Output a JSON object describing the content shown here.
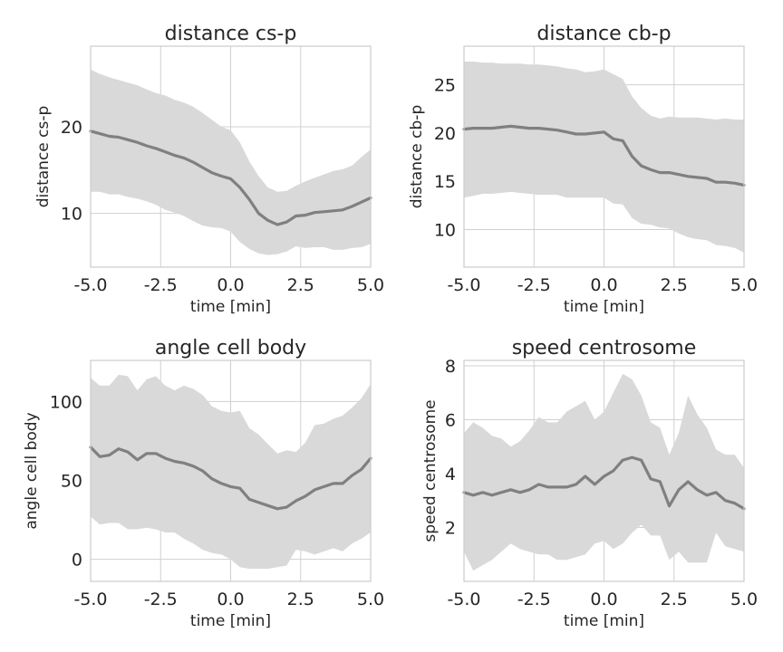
{
  "chart_data": [
    {
      "type": "line",
      "title": "distance cs-p",
      "xlabel": "time [min]",
      "ylabel": "distance cs-p",
      "xlim": [
        -5.0,
        5.0
      ],
      "ylim": [
        3.8,
        29.3
      ],
      "xticks": [
        -5.0,
        -2.5,
        0.0,
        2.5,
        5.0
      ],
      "xtick_labels": [
        "-5.0",
        "-2.5",
        "0.0",
        "2.5",
        "5.0"
      ],
      "yticks": [
        10,
        20
      ],
      "ytick_labels": [
        "10",
        "20"
      ],
      "grid": true,
      "x": [
        -5.0,
        -4.67,
        -4.33,
        -4.0,
        -3.67,
        -3.33,
        -3.0,
        -2.67,
        -2.33,
        -2.0,
        -1.67,
        -1.33,
        -1.0,
        -0.67,
        -0.33,
        0.0,
        0.33,
        0.67,
        1.0,
        1.33,
        1.67,
        2.0,
        2.33,
        2.67,
        3.0,
        3.33,
        3.67,
        4.0,
        4.33,
        4.67,
        5.0
      ],
      "series": [
        {
          "mean": [
            19.5,
            19.2,
            18.9,
            18.8,
            18.5,
            18.2,
            17.8,
            17.5,
            17.1,
            16.7,
            16.4,
            15.9,
            15.3,
            14.7,
            14.3,
            14.0,
            13.0,
            11.6,
            10.0,
            9.2,
            8.7,
            9.0,
            9.7,
            9.8,
            10.1,
            10.2,
            10.3,
            10.4,
            10.8,
            11.3,
            11.8
          ],
          "upper": [
            26.6,
            26.1,
            25.7,
            25.4,
            25.1,
            24.8,
            24.3,
            23.9,
            23.6,
            23.1,
            22.8,
            22.3,
            21.6,
            20.8,
            20.0,
            19.6,
            18.2,
            16.0,
            14.3,
            13.0,
            12.5,
            12.6,
            13.2,
            13.7,
            14.1,
            14.5,
            14.9,
            15.1,
            15.5,
            16.5,
            17.4
          ],
          "lower": [
            12.5,
            12.5,
            12.2,
            12.2,
            11.9,
            11.7,
            11.4,
            11.0,
            10.4,
            10.1,
            9.7,
            9.1,
            8.6,
            8.4,
            8.3,
            7.9,
            6.7,
            5.9,
            5.4,
            5.2,
            5.3,
            5.6,
            6.2,
            6.0,
            6.1,
            6.1,
            5.8,
            5.8,
            6.0,
            6.1,
            6.5
          ]
        }
      ]
    },
    {
      "type": "line",
      "title": "distance cb-p",
      "xlabel": "time [min]",
      "ylabel": "distance cb-p",
      "xlim": [
        -5.0,
        5.0
      ],
      "ylim": [
        6.1,
        29.0
      ],
      "xticks": [
        -5.0,
        -2.5,
        0.0,
        2.5,
        5.0
      ],
      "xtick_labels": [
        "-5.0",
        "-2.5",
        "0.0",
        "2.5",
        "5.0"
      ],
      "yticks": [
        10,
        15,
        20,
        25
      ],
      "ytick_labels": [
        "10",
        "15",
        "20",
        "25"
      ],
      "grid": true,
      "x": [
        -5.0,
        -4.67,
        -4.33,
        -4.0,
        -3.67,
        -3.33,
        -3.0,
        -2.67,
        -2.33,
        -2.0,
        -1.67,
        -1.33,
        -1.0,
        -0.67,
        -0.33,
        0.0,
        0.33,
        0.67,
        1.0,
        1.33,
        1.67,
        2.0,
        2.33,
        2.67,
        3.0,
        3.33,
        3.67,
        4.0,
        4.33,
        4.67,
        5.0
      ],
      "series": [
        {
          "mean": [
            20.4,
            20.5,
            20.5,
            20.5,
            20.6,
            20.7,
            20.6,
            20.5,
            20.5,
            20.4,
            20.3,
            20.1,
            19.9,
            19.9,
            20.0,
            20.1,
            19.4,
            19.2,
            17.6,
            16.6,
            16.2,
            15.9,
            15.9,
            15.7,
            15.5,
            15.4,
            15.3,
            14.9,
            14.9,
            14.8,
            14.6
          ],
          "upper": [
            27.4,
            27.4,
            27.3,
            27.3,
            27.2,
            27.2,
            27.2,
            27.1,
            27.1,
            27.0,
            26.9,
            26.7,
            26.6,
            26.3,
            26.4,
            26.6,
            26.1,
            25.6,
            23.8,
            22.6,
            21.8,
            21.5,
            21.7,
            21.6,
            21.6,
            21.6,
            21.5,
            21.4,
            21.5,
            21.4,
            21.4
          ],
          "lower": [
            13.3,
            13.5,
            13.7,
            13.7,
            13.8,
            13.9,
            13.8,
            13.7,
            13.6,
            13.6,
            13.6,
            13.3,
            13.3,
            13.3,
            13.3,
            13.3,
            12.7,
            12.6,
            11.2,
            10.6,
            10.5,
            10.2,
            10.1,
            9.6,
            9.2,
            9.0,
            8.9,
            8.4,
            8.3,
            8.1,
            7.6
          ]
        }
      ]
    },
    {
      "type": "line",
      "title": "angle cell body",
      "xlabel": "time [min]",
      "ylabel": "angle cell body",
      "xlim": [
        -5.0,
        5.0
      ],
      "ylim": [
        -14,
        126
      ],
      "xticks": [
        -5.0,
        -2.5,
        0.0,
        2.5,
        5.0
      ],
      "xtick_labels": [
        "-5.0",
        "-2.5",
        "0.0",
        "2.5",
        "5.0"
      ],
      "yticks": [
        0,
        50,
        100
      ],
      "ytick_labels": [
        "0",
        "50",
        "100"
      ],
      "grid": true,
      "x": [
        -5.0,
        -4.67,
        -4.33,
        -4.0,
        -3.67,
        -3.33,
        -3.0,
        -2.67,
        -2.33,
        -2.0,
        -1.67,
        -1.33,
        -1.0,
        -0.67,
        -0.33,
        0.0,
        0.33,
        0.67,
        1.0,
        1.33,
        1.67,
        2.0,
        2.33,
        2.67,
        3.0,
        3.33,
        3.67,
        4.0,
        4.33,
        4.67,
        5.0
      ],
      "series": [
        {
          "mean": [
            71,
            65,
            66,
            70,
            68,
            63,
            67,
            67,
            64,
            62,
            61,
            59,
            56,
            51,
            48,
            46,
            45,
            38,
            36,
            34,
            32,
            33,
            37,
            40,
            44,
            46,
            48,
            48,
            53,
            57,
            64
          ],
          "upper": [
            115,
            110,
            110,
            117,
            116,
            107,
            114,
            116,
            110,
            107,
            110,
            108,
            104,
            97,
            94,
            93,
            94,
            83,
            79,
            73,
            67,
            69,
            68,
            74,
            85,
            86,
            89,
            91,
            96,
            102,
            111
          ],
          "lower": [
            27,
            22,
            23,
            23,
            19,
            19,
            20,
            19,
            17,
            17,
            13,
            10,
            6,
            4,
            3,
            0,
            -5,
            -6,
            -6,
            -6,
            -5,
            -4,
            6,
            5,
            3,
            5,
            7,
            5,
            10,
            13,
            17
          ]
        }
      ]
    },
    {
      "type": "line",
      "title": "speed centrosome",
      "xlabel": "time [min]",
      "ylabel": "speed centrosome",
      "xlim": [
        -5.0,
        5.0
      ],
      "ylim": [
        0.0,
        8.2
      ],
      "xticks": [
        -5.0,
        -2.5,
        0.0,
        2.5,
        5.0
      ],
      "xtick_labels": [
        "-5.0",
        "-2.5",
        "0.0",
        "2.5",
        "5.0"
      ],
      "yticks": [
        2,
        4,
        6,
        8
      ],
      "ytick_labels": [
        "2",
        "4",
        "6",
        "8"
      ],
      "grid": true,
      "x": [
        -5.0,
        -4.67,
        -4.33,
        -4.0,
        -3.67,
        -3.33,
        -3.0,
        -2.67,
        -2.33,
        -2.0,
        -1.67,
        -1.33,
        -1.0,
        -0.67,
        -0.33,
        0.0,
        0.33,
        0.67,
        1.0,
        1.33,
        1.67,
        2.0,
        2.33,
        2.67,
        3.0,
        3.33,
        3.67,
        4.0,
        4.33,
        4.67,
        5.0
      ],
      "series": [
        {
          "mean": [
            3.3,
            3.2,
            3.3,
            3.2,
            3.3,
            3.4,
            3.3,
            3.4,
            3.6,
            3.5,
            3.5,
            3.5,
            3.6,
            3.9,
            3.6,
            3.9,
            4.1,
            4.5,
            4.6,
            4.5,
            3.8,
            3.7,
            2.8,
            3.4,
            3.7,
            3.4,
            3.2,
            3.3,
            3.0,
            2.9,
            2.7
          ],
          "upper": [
            5.5,
            5.9,
            5.7,
            5.4,
            5.3,
            5.0,
            5.2,
            5.6,
            6.1,
            5.9,
            5.9,
            6.3,
            6.5,
            6.7,
            6.0,
            6.3,
            7.0,
            7.7,
            7.5,
            6.9,
            5.9,
            5.7,
            4.7,
            5.5,
            6.9,
            6.2,
            5.7,
            4.9,
            4.7,
            4.7,
            4.2
          ]
        },
        {
          "lower": [
            1.1,
            0.4,
            0.6,
            0.8,
            1.1,
            1.4,
            1.2,
            1.1,
            1.0,
            1.0,
            0.8,
            0.8,
            0.9,
            1.0,
            1.4,
            1.5,
            1.2,
            1.4,
            1.8,
            2.1,
            1.7,
            1.7,
            0.8,
            1.1,
            0.7,
            0.7,
            0.7,
            1.8,
            1.3,
            1.2,
            1.1
          ]
        }
      ]
    }
  ],
  "colors": {
    "mean_line": "#808080",
    "band": "#d9d9d9",
    "grid": "#d0d0d0",
    "spine": "#cccccc",
    "text": "#262626"
  }
}
